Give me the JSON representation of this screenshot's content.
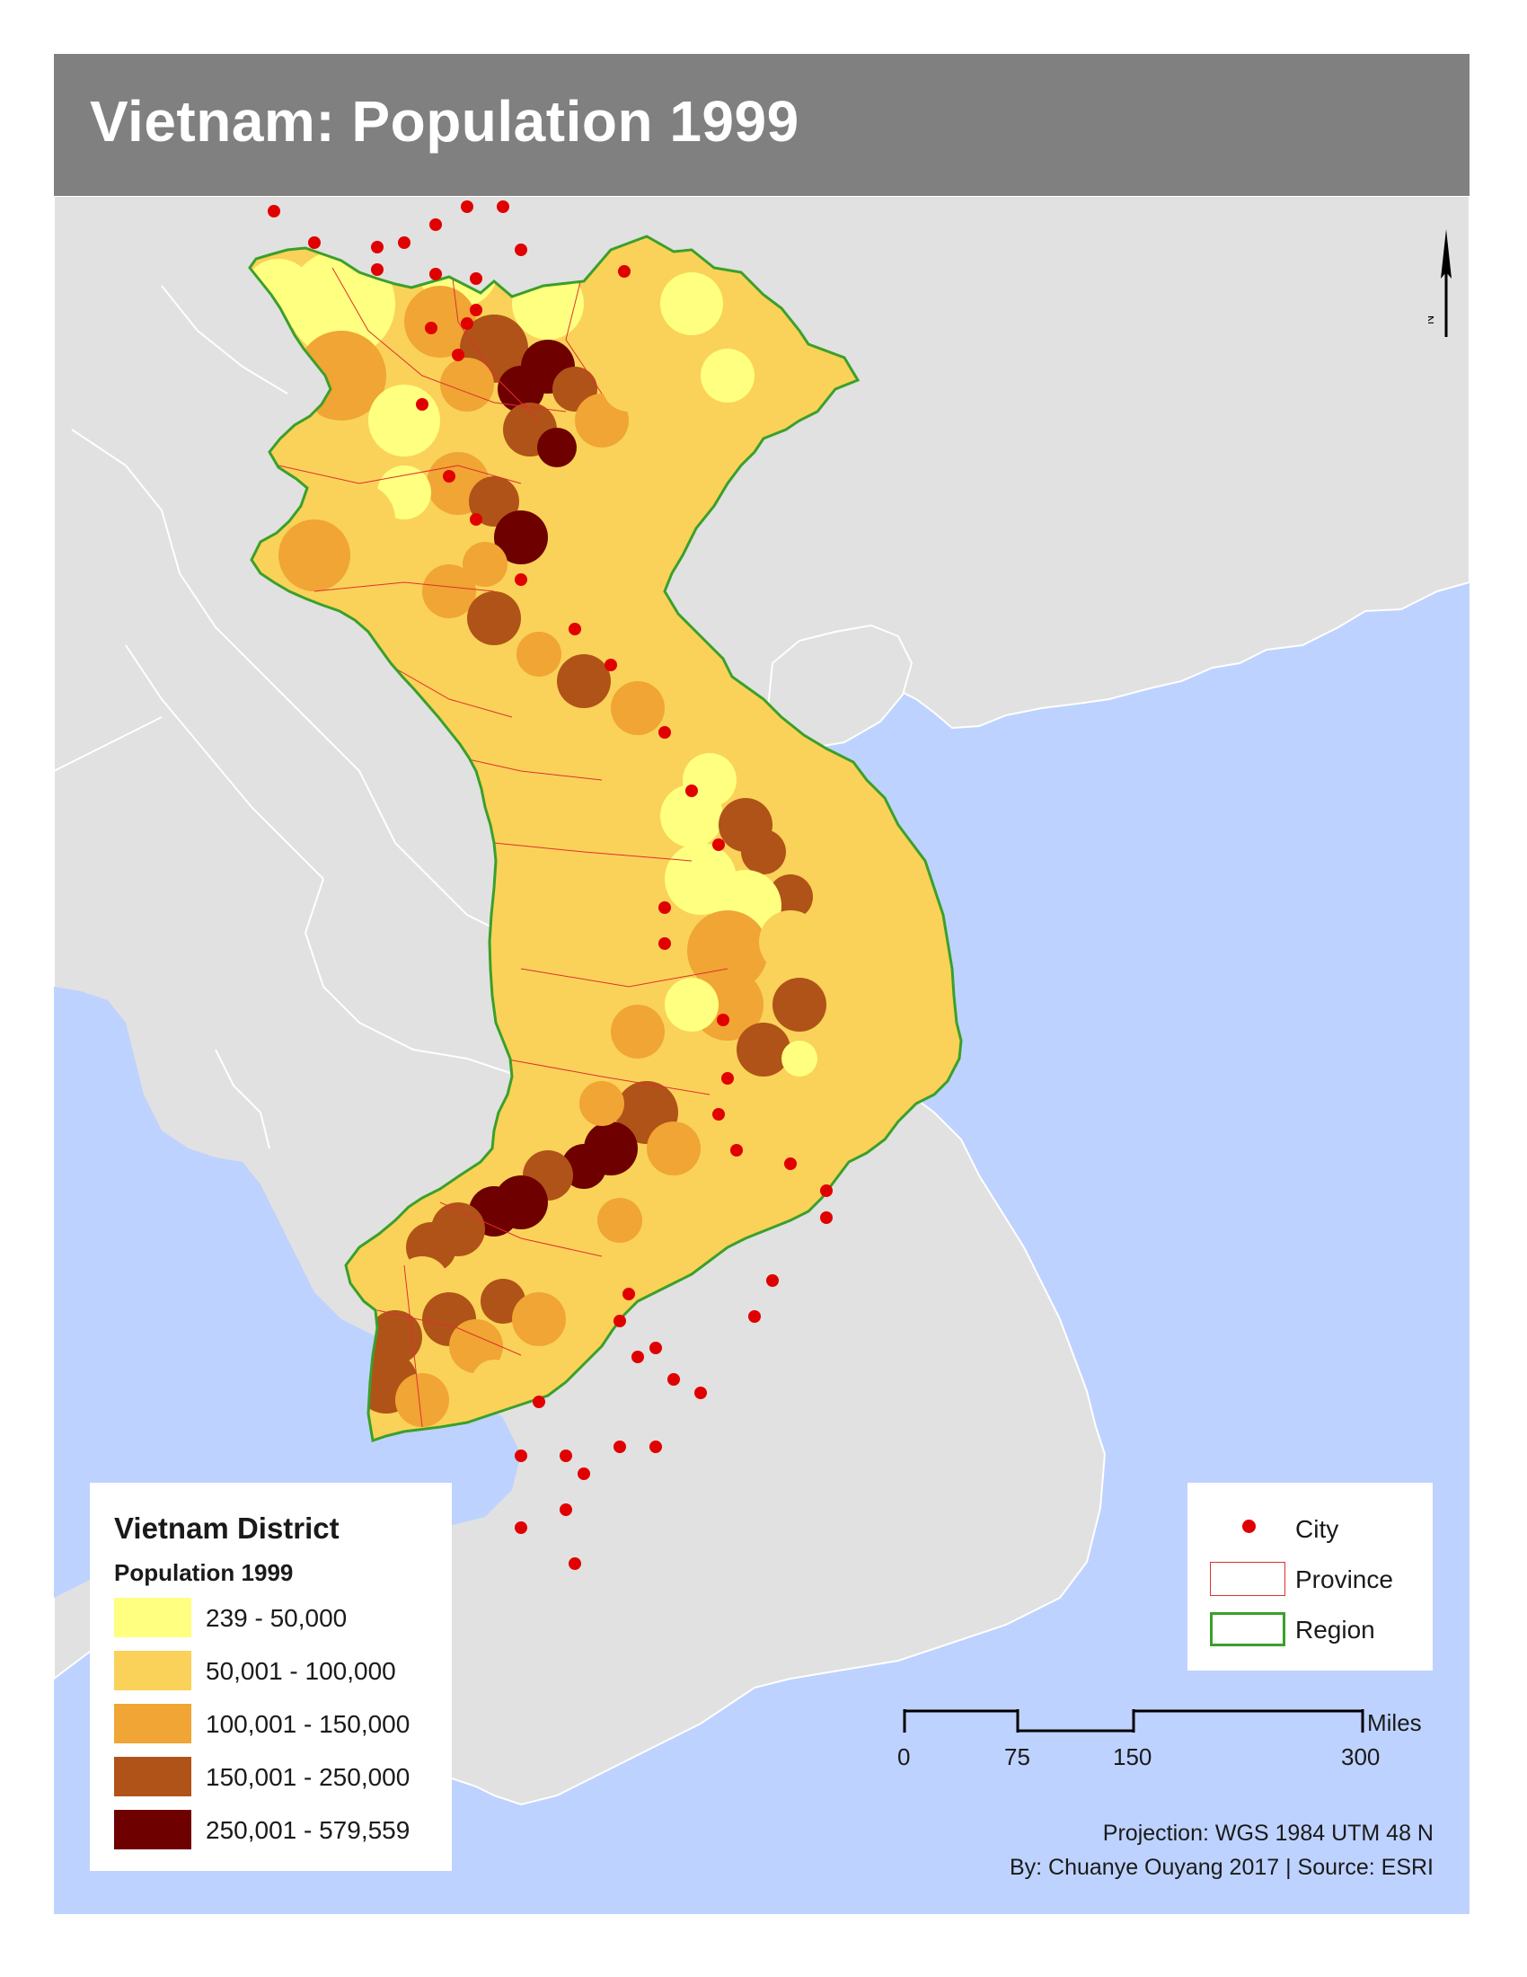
{
  "title": "Vietnam: Population 1999",
  "colors": {
    "ocean": "#bed2ff",
    "land_other": "#e1e1e1",
    "region_border": "#3aa02a",
    "province_border": "#e03030",
    "city": "#e00000"
  },
  "district_legend": {
    "title": "Vietnam District",
    "subtitle": "Population 1999",
    "classes": [
      {
        "label": "239 - 50,000",
        "color": "#ffff80",
        "min": 239,
        "max": 50000
      },
      {
        "label": "50,001 - 100,000",
        "color": "#fad259",
        "min": 50001,
        "max": 100000
      },
      {
        "label": "100,001 - 150,000",
        "color": "#f0a534",
        "min": 100001,
        "max": 150000
      },
      {
        "label": "150,001 - 250,000",
        "color": "#b05318",
        "min": 150001,
        "max": 250000
      },
      {
        "label": "250,001 - 579,559",
        "color": "#6e0000",
        "min": 250001,
        "max": 579559
      }
    ]
  },
  "symbol_legend": {
    "city_label": "City",
    "province_label": "Province",
    "region_label": "Region"
  },
  "scale_bar": {
    "ticks": [
      "0",
      "75",
      "150",
      "300"
    ],
    "units": "Miles"
  },
  "north_arrow_label": "N",
  "credits": {
    "projection": "Projection: WGS 1984 UTM 48 N",
    "author_source": "By: Chuanye Ouyang 2017 | Source: ESRI"
  }
}
